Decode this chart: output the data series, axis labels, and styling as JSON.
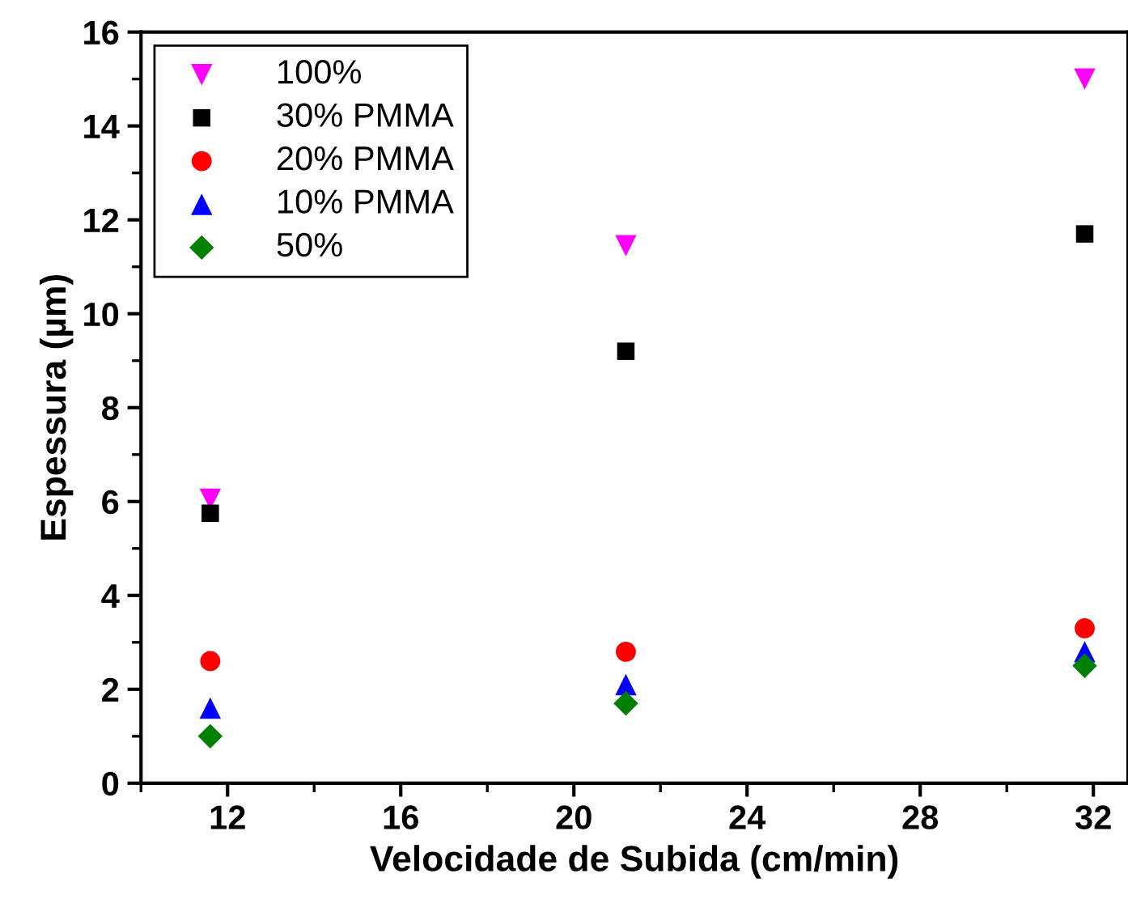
{
  "chart_data": {
    "type": "scatter",
    "xlabel": "Velocidade de Subida (cm/min)",
    "ylabel": "Espessura (µm)",
    "x": [
      11.6,
      21.2,
      31.8
    ],
    "xlim": [
      10,
      32.8
    ],
    "xticks": [
      12,
      16,
      20,
      24,
      28,
      32
    ],
    "ylim": [
      0,
      16
    ],
    "yticks": [
      0,
      2,
      4,
      6,
      8,
      10,
      12,
      14,
      16
    ],
    "grid": false,
    "legend": "top left",
    "series": [
      {
        "name": "100%",
        "color": "#ff00ff",
        "marker": "triangle_down",
        "values": [
          6.05,
          11.45,
          15.0
        ]
      },
      {
        "name": "30% PMMA",
        "color": "#000000",
        "marker": "square",
        "values": [
          5.75,
          9.2,
          11.7
        ]
      },
      {
        "name": "20% PMMA",
        "color": "#ff0000",
        "marker": "circle",
        "values": [
          2.6,
          2.8,
          3.3
        ]
      },
      {
        "name": "10% PMMA",
        "color": "#0000ff",
        "marker": "triangle",
        "values": [
          1.6,
          2.1,
          2.8
        ]
      },
      {
        "name": "50%",
        "color": "#008000",
        "marker": "diamond",
        "values": [
          1.0,
          1.7,
          2.5
        ]
      }
    ]
  }
}
